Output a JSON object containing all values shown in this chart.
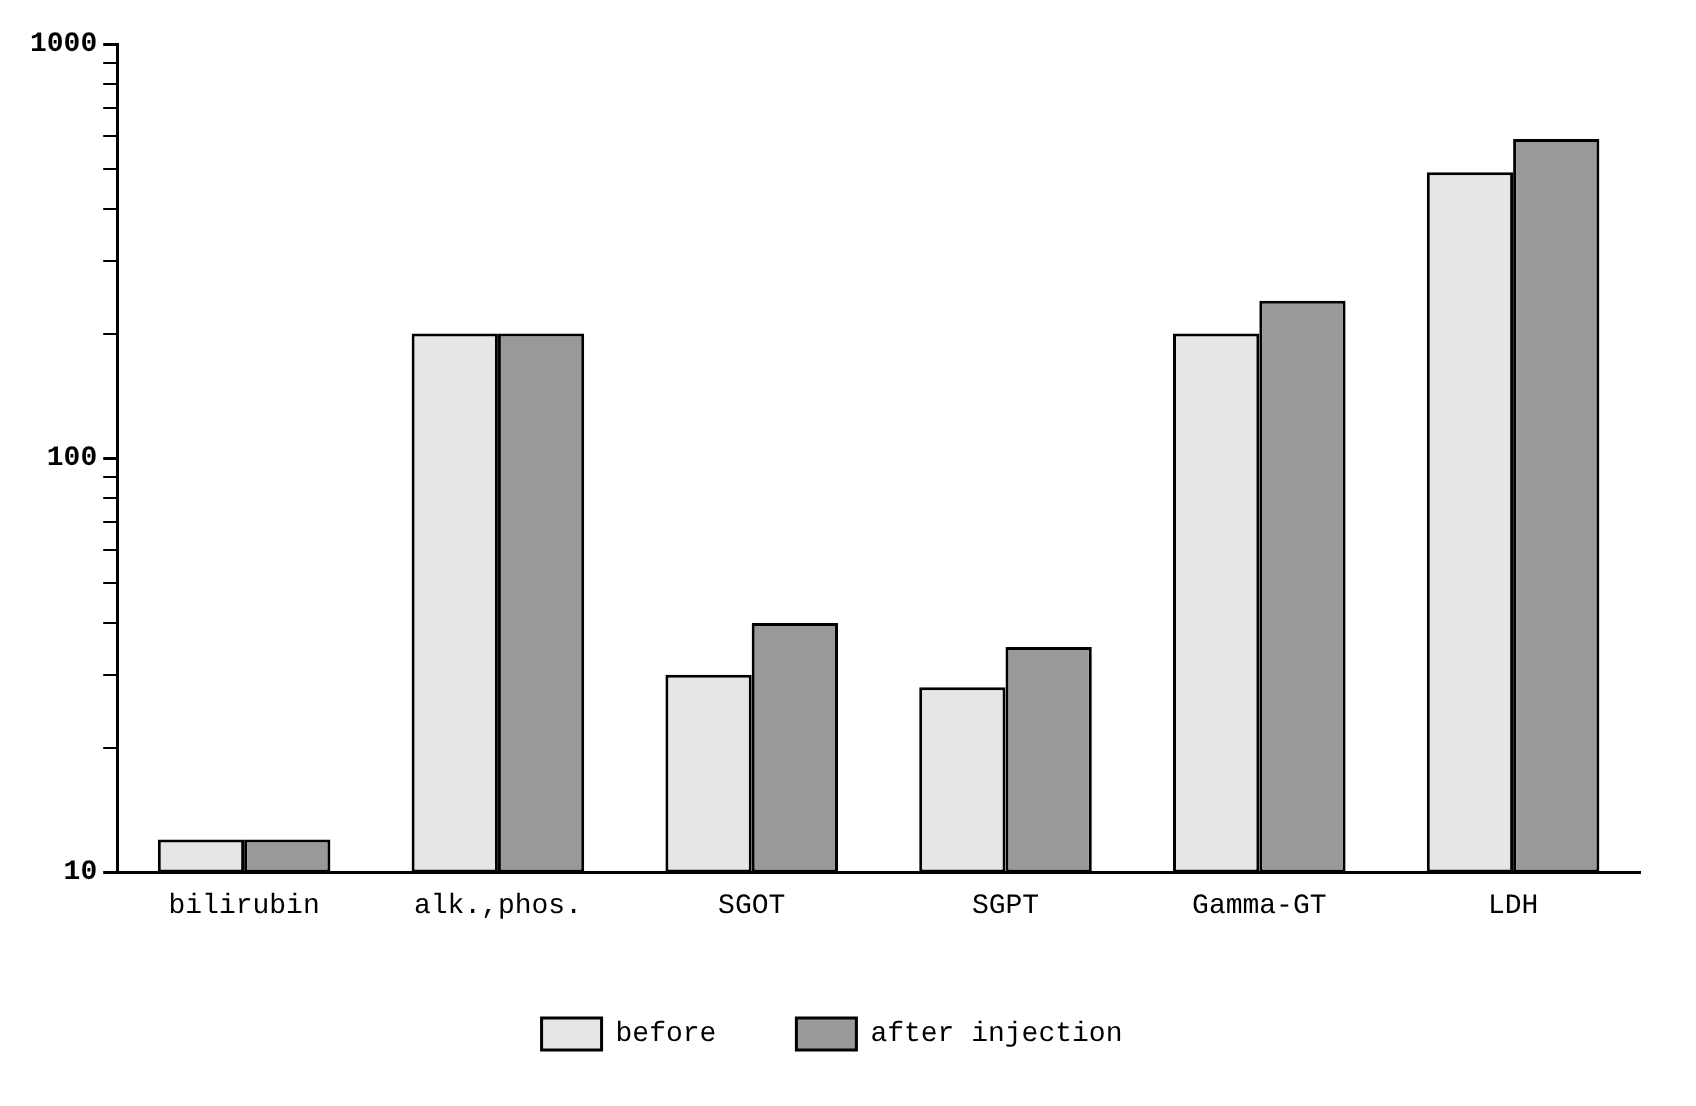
{
  "chart_data": {
    "type": "bar",
    "categories": [
      "bilirubin",
      "alk.,phos.",
      "SGOT",
      "SGPT",
      "Gamma-GT",
      "LDH"
    ],
    "series": [
      {
        "name": "before",
        "color": "#e6e6e6",
        "values": [
          12,
          200,
          30,
          28,
          200,
          490
        ]
      },
      {
        "name": "after injection",
        "color": "#999999",
        "values": [
          12,
          200,
          40,
          35,
          240,
          590
        ]
      }
    ],
    "log": "y",
    "ylim": [
      10,
      1000
    ],
    "yticks": [
      10,
      {
        "value": 20,
        "label": null
      },
      {
        "value": 30,
        "label": null
      },
      {
        "value": 40,
        "label": null
      },
      {
        "value": 50,
        "label": null
      },
      {
        "value": 60,
        "label": null
      },
      {
        "value": 70,
        "label": null
      },
      {
        "value": 80,
        "label": null
      },
      {
        "value": 90,
        "label": null
      },
      100,
      {
        "value": 200,
        "label": null
      },
      {
        "value": 300,
        "label": null
      },
      {
        "value": 400,
        "label": null
      },
      {
        "value": 500,
        "label": null
      },
      {
        "value": 600,
        "label": null
      },
      {
        "value": 700,
        "label": null
      },
      {
        "value": 800,
        "label": null
      },
      {
        "value": 900,
        "label": null
      },
      1000
    ],
    "grid": false,
    "legend": "bottom"
  }
}
